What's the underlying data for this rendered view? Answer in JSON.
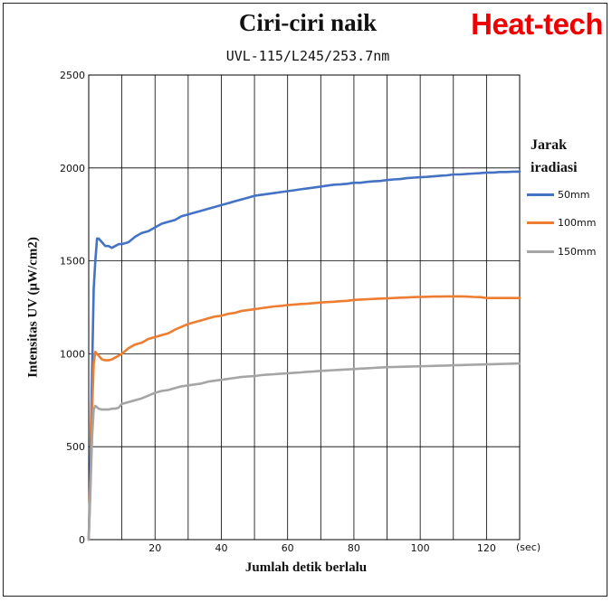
{
  "brand": {
    "name": "Heat-tech",
    "color": "#ee0000"
  },
  "chart_data": {
    "type": "line",
    "title": "Ciri-ciri naik",
    "subtitle": "UVL-115/L245/253.7nm",
    "xlabel": "Jumlah detik berlalu",
    "xunit": "(sec)",
    "ylabel": "Intensitas UV (μW/cm2)",
    "xlim": [
      0,
      130
    ],
    "ylim": [
      0,
      2500
    ],
    "xticks": [
      20,
      40,
      60,
      80,
      100,
      120
    ],
    "yticks": [
      0,
      500,
      1000,
      1500,
      2000,
      2500
    ],
    "xgrid_step": 10,
    "grid": true,
    "legend_title_lines": [
      "Jarak",
      "iradiasi"
    ],
    "legend_position": "right",
    "series": [
      {
        "name": "50mm",
        "color": "#4472c4",
        "points": [
          [
            0,
            0
          ],
          [
            0.5,
            400
          ],
          [
            1,
            900
          ],
          [
            1.5,
            1350
          ],
          [
            2,
            1500
          ],
          [
            2.5,
            1620
          ],
          [
            3,
            1620
          ],
          [
            4,
            1600
          ],
          [
            5,
            1580
          ],
          [
            6,
            1580
          ],
          [
            7,
            1570
          ],
          [
            8,
            1580
          ],
          [
            9,
            1590
          ],
          [
            10,
            1590
          ],
          [
            12,
            1600
          ],
          [
            14,
            1630
          ],
          [
            16,
            1650
          ],
          [
            18,
            1660
          ],
          [
            20,
            1680
          ],
          [
            22,
            1700
          ],
          [
            24,
            1710
          ],
          [
            26,
            1720
          ],
          [
            28,
            1740
          ],
          [
            30,
            1750
          ],
          [
            32,
            1760
          ],
          [
            34,
            1770
          ],
          [
            36,
            1780
          ],
          [
            38,
            1790
          ],
          [
            40,
            1800
          ],
          [
            42,
            1810
          ],
          [
            44,
            1820
          ],
          [
            46,
            1830
          ],
          [
            48,
            1840
          ],
          [
            50,
            1850
          ],
          [
            52,
            1855
          ],
          [
            54,
            1860
          ],
          [
            56,
            1865
          ],
          [
            58,
            1870
          ],
          [
            60,
            1875
          ],
          [
            62,
            1880
          ],
          [
            64,
            1885
          ],
          [
            66,
            1890
          ],
          [
            68,
            1895
          ],
          [
            70,
            1900
          ],
          [
            72,
            1905
          ],
          [
            74,
            1910
          ],
          [
            76,
            1912
          ],
          [
            78,
            1915
          ],
          [
            80,
            1920
          ],
          [
            82,
            1920
          ],
          [
            84,
            1925
          ],
          [
            86,
            1928
          ],
          [
            88,
            1930
          ],
          [
            90,
            1935
          ],
          [
            92,
            1938
          ],
          [
            94,
            1940
          ],
          [
            96,
            1945
          ],
          [
            98,
            1948
          ],
          [
            100,
            1950
          ],
          [
            102,
            1952
          ],
          [
            104,
            1955
          ],
          [
            106,
            1958
          ],
          [
            108,
            1960
          ],
          [
            110,
            1965
          ],
          [
            112,
            1965
          ],
          [
            114,
            1968
          ],
          [
            116,
            1970
          ],
          [
            118,
            1972
          ],
          [
            120,
            1975
          ],
          [
            122,
            1975
          ],
          [
            124,
            1978
          ],
          [
            126,
            1978
          ],
          [
            128,
            1980
          ],
          [
            130,
            1980
          ]
        ]
      },
      {
        "name": "100mm",
        "color": "#ed7d31",
        "points": [
          [
            0,
            0
          ],
          [
            0.5,
            300
          ],
          [
            1,
            700
          ],
          [
            1.5,
            950
          ],
          [
            2,
            1010
          ],
          [
            3,
            990
          ],
          [
            4,
            970
          ],
          [
            5,
            965
          ],
          [
            6,
            965
          ],
          [
            7,
            970
          ],
          [
            8,
            980
          ],
          [
            9,
            990
          ],
          [
            10,
            1000
          ],
          [
            12,
            1030
          ],
          [
            14,
            1050
          ],
          [
            16,
            1060
          ],
          [
            18,
            1080
          ],
          [
            20,
            1090
          ],
          [
            22,
            1100
          ],
          [
            24,
            1110
          ],
          [
            26,
            1130
          ],
          [
            28,
            1145
          ],
          [
            30,
            1160
          ],
          [
            32,
            1170
          ],
          [
            34,
            1180
          ],
          [
            36,
            1190
          ],
          [
            38,
            1200
          ],
          [
            40,
            1205
          ],
          [
            42,
            1215
          ],
          [
            44,
            1220
          ],
          [
            46,
            1230
          ],
          [
            48,
            1235
          ],
          [
            50,
            1240
          ],
          [
            52,
            1245
          ],
          [
            54,
            1250
          ],
          [
            56,
            1255
          ],
          [
            58,
            1258
          ],
          [
            60,
            1262
          ],
          [
            62,
            1265
          ],
          [
            64,
            1268
          ],
          [
            66,
            1270
          ],
          [
            68,
            1273
          ],
          [
            70,
            1276
          ],
          [
            72,
            1278
          ],
          [
            74,
            1280
          ],
          [
            76,
            1283
          ],
          [
            78,
            1285
          ],
          [
            80,
            1290
          ],
          [
            82,
            1292
          ],
          [
            84,
            1294
          ],
          [
            86,
            1295
          ],
          [
            88,
            1297
          ],
          [
            90,
            1298
          ],
          [
            92,
            1300
          ],
          [
            94,
            1302
          ],
          [
            96,
            1303
          ],
          [
            98,
            1305
          ],
          [
            100,
            1306
          ],
          [
            102,
            1307
          ],
          [
            104,
            1308
          ],
          [
            106,
            1308
          ],
          [
            108,
            1309
          ],
          [
            110,
            1309
          ],
          [
            112,
            1309
          ],
          [
            114,
            1308
          ],
          [
            116,
            1306
          ],
          [
            118,
            1305
          ],
          [
            120,
            1300
          ],
          [
            122,
            1300
          ],
          [
            124,
            1300
          ],
          [
            126,
            1300
          ],
          [
            128,
            1300
          ],
          [
            130,
            1300
          ]
        ]
      },
      {
        "name": "150mm",
        "color": "#a5a5a5",
        "points": [
          [
            0,
            0
          ],
          [
            0.5,
            250
          ],
          [
            1,
            550
          ],
          [
            1.5,
            700
          ],
          [
            2,
            720
          ],
          [
            3,
            705
          ],
          [
            4,
            700
          ],
          [
            5,
            700
          ],
          [
            6,
            700
          ],
          [
            7,
            705
          ],
          [
            8,
            705
          ],
          [
            9,
            710
          ],
          [
            10,
            730
          ],
          [
            12,
            740
          ],
          [
            14,
            750
          ],
          [
            16,
            760
          ],
          [
            18,
            775
          ],
          [
            20,
            790
          ],
          [
            22,
            800
          ],
          [
            24,
            805
          ],
          [
            26,
            815
          ],
          [
            28,
            825
          ],
          [
            30,
            830
          ],
          [
            32,
            835
          ],
          [
            34,
            840
          ],
          [
            36,
            850
          ],
          [
            38,
            855
          ],
          [
            40,
            860
          ],
          [
            42,
            865
          ],
          [
            44,
            870
          ],
          [
            46,
            875
          ],
          [
            48,
            878
          ],
          [
            50,
            880
          ],
          [
            52,
            885
          ],
          [
            54,
            888
          ],
          [
            56,
            890
          ],
          [
            58,
            893
          ],
          [
            60,
            895
          ],
          [
            62,
            898
          ],
          [
            64,
            900
          ],
          [
            66,
            903
          ],
          [
            68,
            905
          ],
          [
            70,
            908
          ],
          [
            72,
            910
          ],
          [
            74,
            912
          ],
          [
            76,
            914
          ],
          [
            78,
            916
          ],
          [
            80,
            918
          ],
          [
            82,
            920
          ],
          [
            84,
            922
          ],
          [
            86,
            924
          ],
          [
            88,
            926
          ],
          [
            90,
            928
          ],
          [
            92,
            929
          ],
          [
            94,
            930
          ],
          [
            96,
            931
          ],
          [
            98,
            932
          ],
          [
            100,
            933
          ],
          [
            102,
            934
          ],
          [
            104,
            935
          ],
          [
            106,
            936
          ],
          [
            108,
            937
          ],
          [
            110,
            938
          ],
          [
            112,
            939
          ],
          [
            114,
            940
          ],
          [
            116,
            941
          ],
          [
            118,
            942
          ],
          [
            120,
            943
          ],
          [
            122,
            944
          ],
          [
            124,
            945
          ],
          [
            126,
            946
          ],
          [
            128,
            947
          ],
          [
            130,
            948
          ]
        ]
      }
    ]
  }
}
